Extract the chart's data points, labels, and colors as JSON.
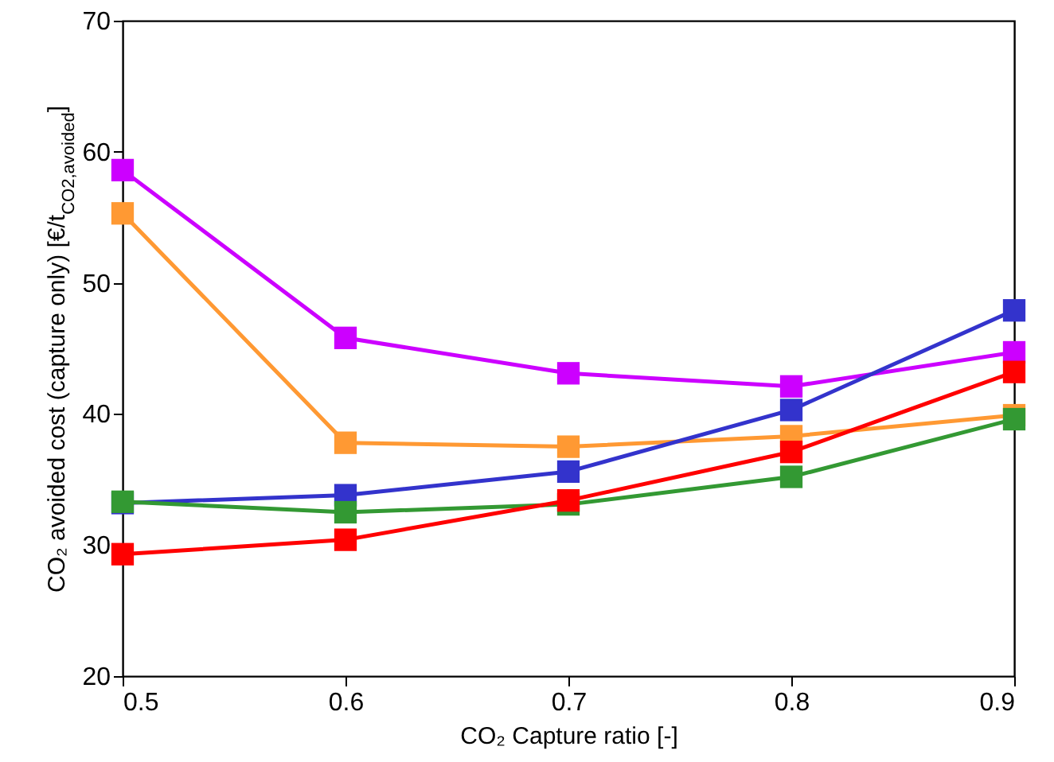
{
  "chart_data": {
    "type": "line",
    "xlabel": "CO₂ Capture ratio [-]",
    "ylabel": "CO₂ avoided cost (capture only) [€/t$_{CO2,avoided}$]",
    "x": [
      0.5,
      0.6,
      0.7,
      0.8,
      0.9
    ],
    "series": [
      {
        "color": "#cc00ff",
        "values": [
          58.6,
          45.8,
          43.1,
          42.1,
          44.7
        ]
      },
      {
        "color": "#ff9933",
        "values": [
          55.3,
          37.8,
          37.5,
          38.3,
          39.9
        ]
      },
      {
        "color": "#3333cc",
        "values": [
          33.2,
          33.8,
          35.6,
          40.3,
          47.9
        ]
      },
      {
        "color": "#339933",
        "values": [
          33.3,
          32.5,
          33.1,
          35.2,
          39.6
        ]
      },
      {
        "color": "#ff0000",
        "values": [
          29.3,
          30.4,
          33.4,
          37.1,
          43.2
        ]
      }
    ],
    "xlim": [
      0.5,
      0.9
    ],
    "xticks": [
      0.5,
      0.6,
      0.7,
      0.8,
      0.9
    ],
    "ylim": [
      20,
      70
    ],
    "yticks": [
      20,
      30,
      40,
      50,
      60,
      70
    ],
    "grid": false,
    "marker": "square",
    "line_style": "solid"
  }
}
